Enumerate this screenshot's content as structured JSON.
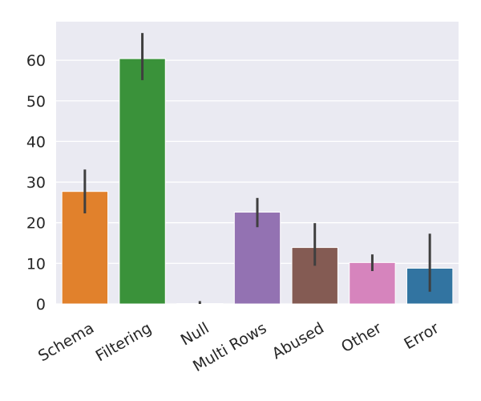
{
  "chart_data": {
    "type": "bar",
    "title": "",
    "xlabel": "",
    "ylabel": "",
    "categories": [
      "Schema",
      "Filtering",
      "Null",
      "Multi Rows",
      "Abused",
      "Other",
      "Error"
    ],
    "values": [
      27.7,
      60.4,
      0.1,
      22.6,
      13.9,
      10.2,
      8.8
    ],
    "error_low": [
      22.3,
      55.1,
      0.0,
      18.9,
      9.4,
      8.1,
      3.0
    ],
    "error_high": [
      33.1,
      66.7,
      0.7,
      26.1,
      19.9,
      12.2,
      17.3
    ],
    "colors": [
      "#e1812c",
      "#3a923a",
      "#c03d3e",
      "#9372b2",
      "#845b53",
      "#d684bd",
      "#3274a1"
    ],
    "ylim": [
      0,
      69.5
    ],
    "yticks": [
      0,
      10,
      20,
      30,
      40,
      50,
      60
    ],
    "grid": true,
    "background": "#eaeaf2",
    "errorbar_color": "#3f3f3f"
  }
}
